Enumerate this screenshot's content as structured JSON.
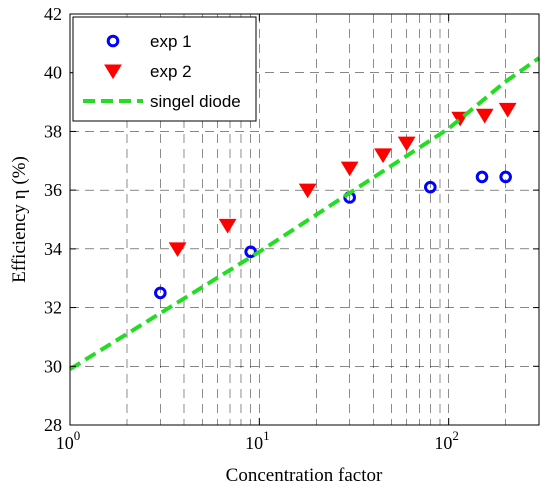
{
  "chart_data": {
    "type": "scatter",
    "xscale": "log",
    "xlim": [
      1,
      300
    ],
    "ylim": [
      28,
      42
    ],
    "xlabel": "Concentration factor",
    "ylabel": "Efficiency η (%)",
    "grid": true,
    "grid_style": "dashed",
    "legend_position": "top-left",
    "x_ticks": [
      {
        "value": 1,
        "base": "10",
        "exp": "0"
      },
      {
        "value": 10,
        "base": "10",
        "exp": "1"
      },
      {
        "value": 100,
        "base": "10",
        "exp": "2"
      }
    ],
    "y_ticks": [
      "28",
      "30",
      "32",
      "34",
      "36",
      "38",
      "40",
      "42"
    ],
    "series": [
      {
        "name": "exp 1",
        "kind": "marker",
        "marker": "circle",
        "color": "#0000ff",
        "x": [
          3,
          9,
          30,
          80,
          150,
          200
        ],
        "y": [
          32.5,
          33.9,
          35.75,
          36.1,
          36.45,
          36.45
        ]
      },
      {
        "name": "exp 2",
        "kind": "marker",
        "marker": "triangle-down",
        "color": "#ff0000",
        "x": [
          3.7,
          6.8,
          18,
          30,
          45,
          60,
          115,
          155,
          205
        ],
        "y": [
          34.0,
          34.8,
          36.0,
          36.75,
          37.2,
          37.6,
          38.45,
          38.55,
          38.75
        ]
      },
      {
        "name": "singel diode",
        "kind": "line",
        "style": "dashed",
        "color": "#22dd22",
        "x": [
          1,
          10,
          100,
          200,
          300
        ],
        "y": [
          29.9,
          33.9,
          38.1,
          39.7,
          40.5
        ]
      }
    ]
  }
}
